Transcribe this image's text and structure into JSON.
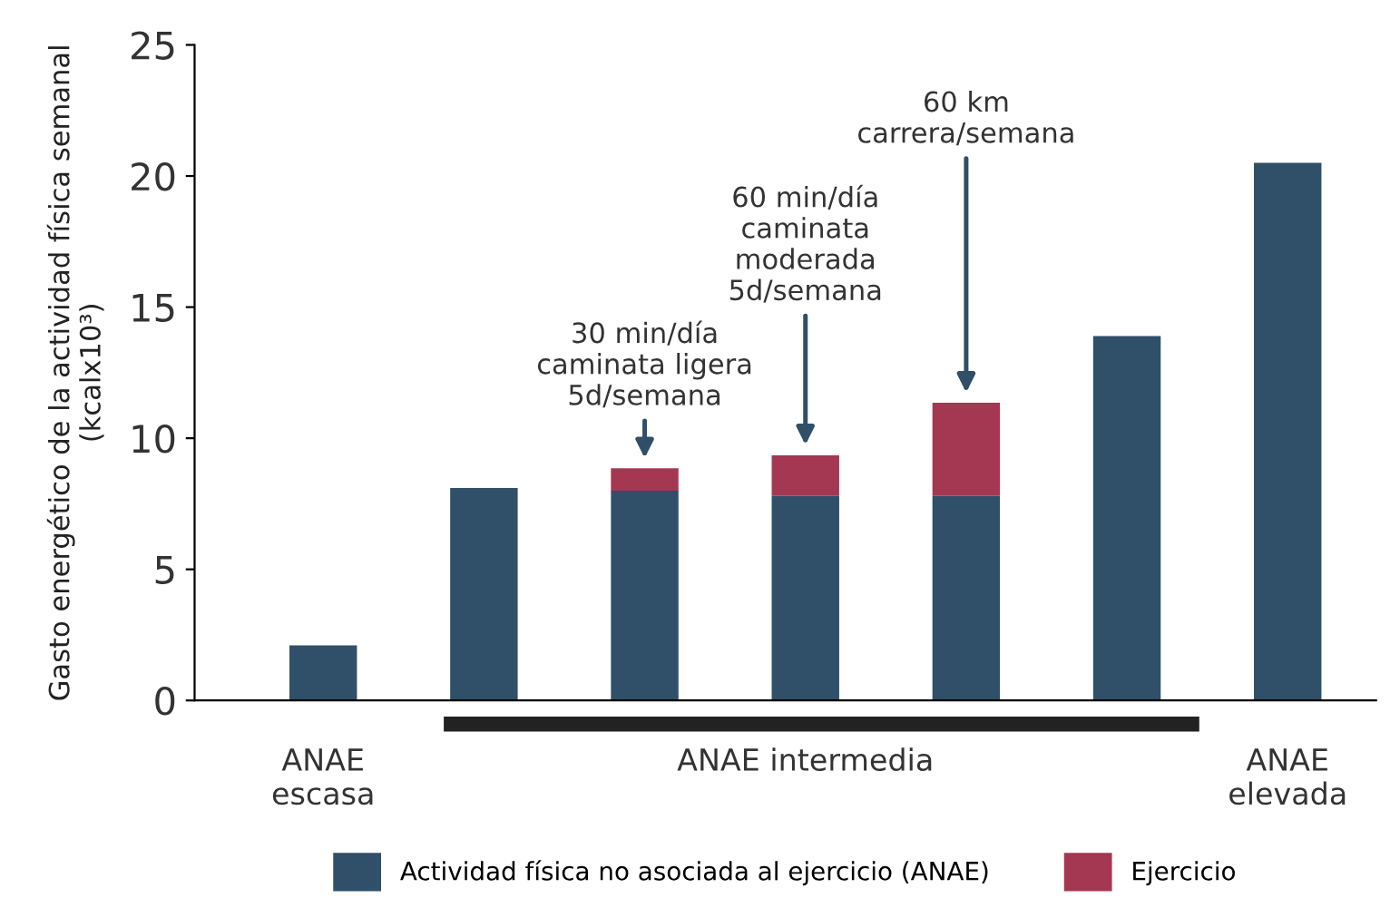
{
  "chart_data": {
    "type": "bar",
    "stacked": true,
    "ylabel": "Gasto energético de la actividad física semanal (kcalx10³)",
    "categories": [
      null,
      null,
      null,
      null,
      null,
      null,
      null
    ],
    "series": [
      {
        "name": "Actividad física no asociada al ejercicio (ANAE)",
        "color": "#304f68",
        "values": [
          2.1,
          8.1,
          8.0,
          7.8,
          7.8,
          13.9,
          20.5
        ]
      },
      {
        "name": "Ejercicio",
        "color": "#a43752",
        "values": [
          null,
          null,
          0.85,
          1.55,
          3.55,
          null,
          null
        ]
      }
    ],
    "ylim": [
      0,
      25
    ],
    "yticks": [
      0,
      5,
      10,
      15,
      20,
      25
    ],
    "grid": false,
    "legend": "bottom",
    "annotations": [
      "30 min/día\ncaminata ligera\n5d/semana",
      "60 min/día\ncaminata\nmoderada\n5d/semana",
      "60 km\ncarrera/semana",
      "ANAE\nescasa",
      "ANAE intermedia",
      "ANAE\nelevada"
    ]
  }
}
